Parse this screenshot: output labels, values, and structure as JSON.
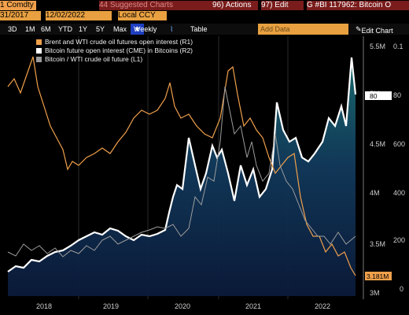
{
  "toolbar": {
    "security": "1 Comdty",
    "date_start": "31/2017",
    "date_end": "12/02/2022",
    "suggested": "Suggested Charts",
    "actions": "Actions",
    "edit": "Edit",
    "title": "G #BI 117962: Bitcoin O",
    "suggested_num": "44",
    "actions_num": "96)",
    "edit_num": "97)"
  },
  "toolbar2": {
    "periods": [
      "3D",
      "1M",
      "6M",
      "YTD",
      "1Y",
      "5Y",
      "Max"
    ],
    "interval": "Weekly",
    "currency": "Local CCY",
    "table": "Table",
    "add_data": "Add Data",
    "edit_chart": "Edit Chart"
  },
  "chart_data": {
    "type": "line",
    "series": [
      {
        "name": "Brent and WTI crude oil futures open interest (R1)",
        "color": "#f0a04b",
        "axis": "right-outer"
      },
      {
        "name": "Bitcoin future open interest (CME) in Bitcoins (R2)",
        "color": "#ffffff",
        "axis": "right-inner"
      },
      {
        "name": "Bitcoin / WTI crude oil future (L1)",
        "color": "#9c9c9c",
        "axis": "left"
      }
    ],
    "x_ticks": [
      "2018",
      "2019",
      "2020",
      "2021",
      "2022"
    ],
    "right_inner_ticks": [
      "5.5M",
      "5M",
      "4.5M",
      "4M",
      "3.5M",
      "3M"
    ],
    "right_outer_ticks": [
      "0.1",
      "80",
      "600",
      "400",
      "200",
      "0"
    ],
    "last_value_label": "3.181M",
    "right_inner_top_label": "80"
  }
}
